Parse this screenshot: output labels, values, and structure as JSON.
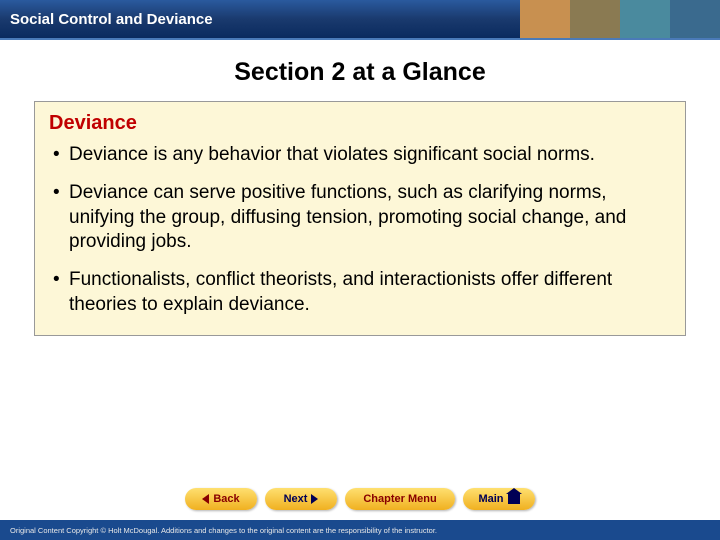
{
  "header": {
    "chapter_title": "Social Control and Deviance",
    "bar_gradient": [
      "#2a5a9e",
      "#1a3a6e",
      "#0a2a5e"
    ],
    "underline_color": "#4a7ab8",
    "deco_colors": [
      "#c89050",
      "#8a7a52",
      "#4a8a9e",
      "#3a6a8e"
    ]
  },
  "slide": {
    "title": "Section 2 at a Glance",
    "title_fontsize": 25,
    "title_color": "#000000"
  },
  "content_box": {
    "background_color": "#fdf7d7",
    "border_color": "#999999",
    "heading": "Deviance",
    "heading_color": "#c00000",
    "heading_fontsize": 20,
    "bullet_fontsize": 19,
    "bullets": [
      "Deviance is any behavior that violates significant social norms.",
      "Deviance can serve positive functions, such as clarifying norms, unifying the group, diffusing tension, promoting social change, and providing jobs.",
      "Functionalists, conflict theorists, and interactionists offer different theories to explain deviance."
    ]
  },
  "nav": {
    "back_label": "Back",
    "next_label": "Next",
    "chapter_label": "Chapter Menu",
    "main_label": "Main",
    "button_gradient": [
      "#ffe070",
      "#f0b020"
    ],
    "back_text_color": "#880000",
    "next_text_color": "#000055",
    "chapter_text_color": "#880000",
    "main_text_color": "#000055"
  },
  "footer": {
    "text": "Original Content Copyright © Holt McDougal. Additions and changes to the original content are the responsibility of the instructor.",
    "background_color": "#1a4a8e",
    "text_color": "#e8e8e8",
    "fontsize": 7.5
  }
}
